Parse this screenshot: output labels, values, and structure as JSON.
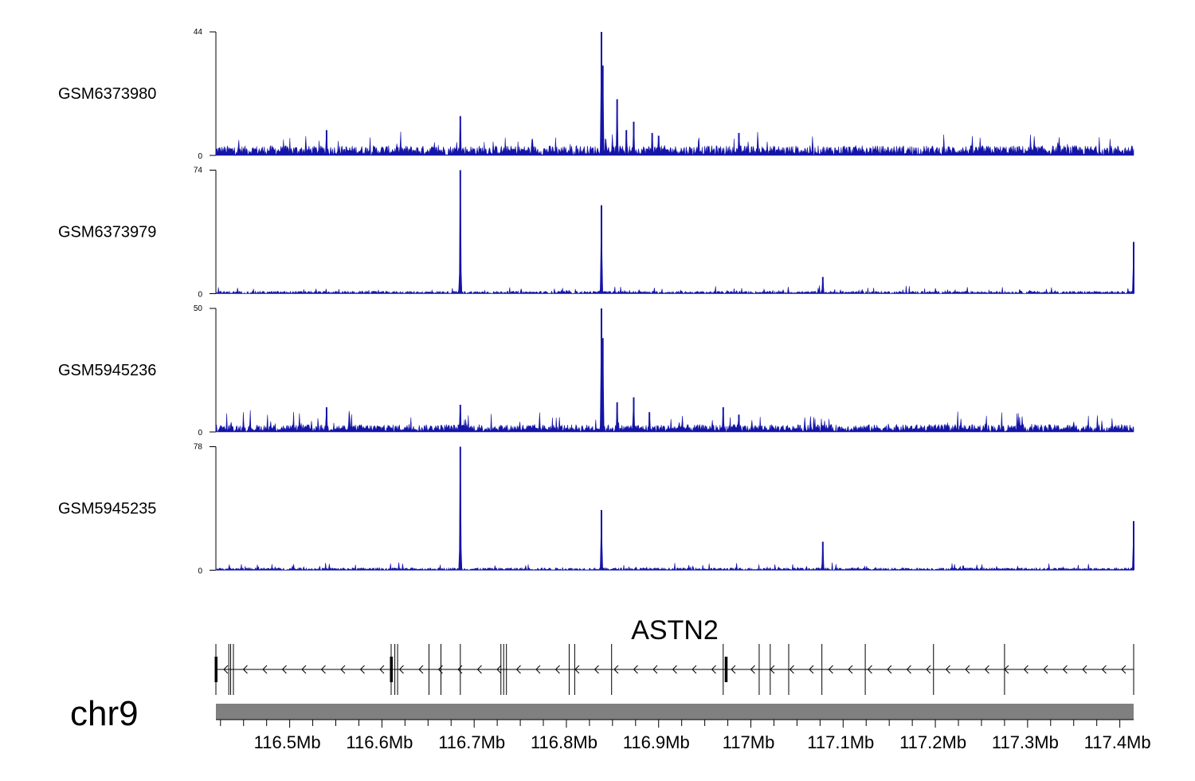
{
  "chart_data": {
    "type": "genome_browser_coverage",
    "chromosome": "chr9",
    "colors": {
      "signal": "#1414a8",
      "axis": "#000000",
      "ideogram": "#808080"
    },
    "x_range_mb": [
      116.42,
      117.415
    ],
    "tracks": [
      {
        "name": "GSM6373980",
        "ylim": [
          0,
          44
        ],
        "ytick_top": "44",
        "ytick_bottom": "0",
        "baseline": 3.5,
        "noise": 3.0,
        "peaks": [
          [
            116.54,
            9
          ],
          [
            116.685,
            14
          ],
          [
            116.838,
            44
          ],
          [
            116.8395,
            32
          ],
          [
            116.855,
            20
          ],
          [
            116.865,
            9
          ],
          [
            116.873,
            12
          ],
          [
            116.893,
            8
          ],
          [
            116.9,
            7
          ],
          [
            116.987,
            8
          ]
        ]
      },
      {
        "name": "GSM6373979",
        "ylim": [
          0,
          74
        ],
        "ytick_top": "74",
        "ytick_bottom": "0",
        "baseline": 1.5,
        "noise": 2.0,
        "peaks": [
          [
            116.685,
            74
          ],
          [
            116.838,
            53
          ],
          [
            117.078,
            10
          ],
          [
            117.415,
            31
          ]
        ]
      },
      {
        "name": "GSM5945236",
        "ylim": [
          0,
          50
        ],
        "ytick_top": "50",
        "ytick_bottom": "0",
        "baseline": 3.0,
        "noise": 3.5,
        "peaks": [
          [
            116.54,
            10
          ],
          [
            116.685,
            11
          ],
          [
            116.838,
            50
          ],
          [
            116.8395,
            38
          ],
          [
            116.855,
            12
          ],
          [
            116.873,
            14
          ],
          [
            116.89,
            8
          ],
          [
            116.97,
            10
          ],
          [
            116.987,
            7
          ]
        ]
      },
      {
        "name": "GSM5945235",
        "ylim": [
          0,
          78
        ],
        "ytick_top": "78",
        "ytick_bottom": "0",
        "baseline": 1.5,
        "noise": 2.0,
        "peaks": [
          [
            116.685,
            78
          ],
          [
            116.838,
            38
          ],
          [
            117.078,
            18
          ],
          [
            117.415,
            31
          ]
        ]
      }
    ],
    "gene": {
      "name": "ASTN2",
      "strand": "-",
      "start_mb": 116.42,
      "end_mb": 117.415,
      "exons_mb": [
        116.42,
        116.434,
        116.436,
        116.439,
        116.61,
        116.614,
        116.617,
        116.651,
        116.664,
        116.685,
        116.729,
        116.732,
        116.735,
        116.803,
        116.809,
        116.849,
        116.97,
        117.009,
        117.021,
        117.041,
        117.077,
        117.124,
        117.198,
        117.275,
        117.415
      ],
      "thick_exons_mb": [
        116.42,
        116.61,
        116.973
      ]
    },
    "x_axis": {
      "ticks_mb": [
        116.5,
        116.6,
        116.7,
        116.8,
        116.9,
        117.0,
        117.1,
        117.2,
        117.3,
        117.4
      ],
      "tick_labels": [
        "116.5Mb",
        "116.6Mb",
        "116.7Mb",
        "116.8Mb",
        "116.9Mb",
        "117Mb",
        "117.1Mb",
        "117.2Mb",
        "117.3Mb",
        "117.4Mb"
      ]
    }
  }
}
